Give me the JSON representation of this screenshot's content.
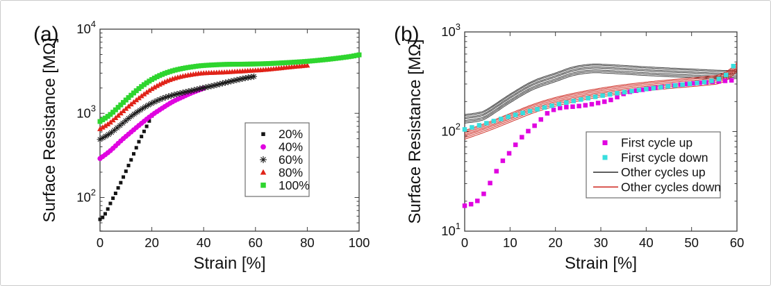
{
  "figure": {
    "description": "Two-panel log-scale figure of surface resistance versus strain",
    "background": "#ffffff"
  },
  "chart_data": [
    {
      "panel": "a",
      "panel_label": "(a)",
      "type": "scatter",
      "title": "",
      "xlabel": "Strain [%]",
      "ylabel": "Surface Resistance [MΩ]",
      "yscale": "log",
      "xlim": [
        0,
        100
      ],
      "xticks": [
        0,
        20,
        40,
        60,
        80,
        100
      ],
      "ylog_range_exp": [
        1.6,
        4
      ],
      "ytick_exponents": [
        2,
        3,
        4
      ],
      "grid": false,
      "legend_position": "middle-right",
      "series": [
        {
          "name": "20%",
          "draw": "scatter",
          "marker": "square",
          "color": "#141414",
          "marker_size": 5,
          "marker_step": 1,
          "points": [
            [
              0,
              55
            ],
            [
              1,
              58
            ],
            [
              2,
              64
            ],
            [
              3,
              73
            ],
            [
              4,
              85
            ],
            [
              5,
              98
            ],
            [
              6,
              112
            ],
            [
              7,
              130
            ],
            [
              8,
              150
            ],
            [
              9,
              175
            ],
            [
              10,
              205
            ],
            [
              11,
              240
            ],
            [
              12,
              280
            ],
            [
              13,
              330
            ],
            [
              14,
              390
            ],
            [
              15,
              460
            ],
            [
              16,
              530
            ],
            [
              17,
              610
            ],
            [
              18,
              700
            ],
            [
              19,
              810
            ],
            [
              20,
              930
            ]
          ]
        },
        {
          "name": "40%",
          "draw": "scatter",
          "marker": "circle",
          "color": "#E004E0",
          "marker_size": 6.5,
          "marker_step": 1,
          "points": [
            [
              0,
              290
            ],
            [
              4,
              360
            ],
            [
              8,
              470
            ],
            [
              12,
              600
            ],
            [
              16,
              760
            ],
            [
              20,
              950
            ],
            [
              24,
              1150
            ],
            [
              28,
              1370
            ],
            [
              32,
              1570
            ],
            [
              36,
              1780
            ],
            [
              40,
              1980
            ]
          ]
        },
        {
          "name": "60%",
          "draw": "scatter",
          "marker": "asterisk",
          "color": "#1a1a1a",
          "marker_size": 4.5,
          "marker_step": 1.1,
          "points": [
            [
              0,
              490
            ],
            [
              4,
              580
            ],
            [
              8,
              730
            ],
            [
              12,
              920
            ],
            [
              16,
              1120
            ],
            [
              20,
              1320
            ],
            [
              24,
              1500
            ],
            [
              28,
              1640
            ],
            [
              32,
              1760
            ],
            [
              36,
              1880
            ],
            [
              40,
              2010
            ],
            [
              44,
              2140
            ],
            [
              48,
              2300
            ],
            [
              52,
              2460
            ],
            [
              56,
              2620
            ],
            [
              60,
              2760
            ]
          ]
        },
        {
          "name": "80%",
          "draw": "scatter",
          "marker": "triangle",
          "color": "#E02318",
          "marker_size": 6,
          "marker_step": 1,
          "points": [
            [
              0,
              650
            ],
            [
              4,
              780
            ],
            [
              8,
              1000
            ],
            [
              12,
              1280
            ],
            [
              16,
              1600
            ],
            [
              20,
              1950
            ],
            [
              24,
              2280
            ],
            [
              28,
              2560
            ],
            [
              32,
              2760
            ],
            [
              36,
              2900
            ],
            [
              40,
              3000
            ],
            [
              48,
              3070
            ],
            [
              56,
              3180
            ],
            [
              64,
              3300
            ],
            [
              72,
              3500
            ],
            [
              80,
              3700
            ]
          ]
        },
        {
          "name": "100%",
          "draw": "scatter",
          "marker": "square",
          "color": "#2ED52E",
          "marker_size": 7,
          "marker_step": 1,
          "points": [
            [
              0,
              800
            ],
            [
              4,
              970
            ],
            [
              8,
              1260
            ],
            [
              12,
              1640
            ],
            [
              16,
              2080
            ],
            [
              20,
              2520
            ],
            [
              24,
              2900
            ],
            [
              28,
              3200
            ],
            [
              32,
              3420
            ],
            [
              36,
              3580
            ],
            [
              40,
              3700
            ],
            [
              48,
              3810
            ],
            [
              56,
              3840
            ],
            [
              64,
              3890
            ],
            [
              72,
              4000
            ],
            [
              80,
              4150
            ],
            [
              88,
              4380
            ],
            [
              96,
              4700
            ],
            [
              100,
              4950
            ]
          ]
        }
      ]
    },
    {
      "panel": "b",
      "panel_label": "(b)",
      "type": "scatter",
      "title": "",
      "xlabel": "Strain [%]",
      "ylabel": "Surface Resistance [MΩ]",
      "yscale": "log",
      "xlim": [
        0,
        60
      ],
      "xticks": [
        0,
        10,
        20,
        30,
        40,
        50,
        60
      ],
      "ylog_range_exp": [
        1,
        3
      ],
      "ytick_exponents": [
        1,
        2,
        3
      ],
      "grid": false,
      "legend_position": "lower-right",
      "series": [
        {
          "name": "First cycle up",
          "draw": "scatter",
          "marker": "square",
          "color": "#E004E0",
          "marker_size": 6.5,
          "marker_step": 1.4,
          "points": [
            [
              0,
              18
            ],
            [
              1,
              18.5
            ],
            [
              2,
              19
            ],
            [
              3,
              20.5
            ],
            [
              4,
              23
            ],
            [
              5,
              27
            ],
            [
              6,
              33
            ],
            [
              7,
              40
            ],
            [
              8,
              48
            ],
            [
              9,
              55
            ],
            [
              10,
              62
            ],
            [
              12,
              82
            ],
            [
              14,
              101
            ],
            [
              16,
              121
            ],
            [
              18,
              150
            ],
            [
              20,
              168
            ],
            [
              22,
              175
            ],
            [
              24,
              178
            ],
            [
              26,
              182
            ],
            [
              28,
              188
            ],
            [
              30,
              196
            ],
            [
              32,
              206
            ],
            [
              34,
              226
            ],
            [
              36,
              248
            ],
            [
              40,
              266
            ],
            [
              44,
              283
            ],
            [
              48,
              297
            ],
            [
              52,
              309
            ],
            [
              56,
              319
            ],
            [
              60,
              330
            ]
          ]
        },
        {
          "name": "First cycle down",
          "draw": "scatter",
          "marker": "square",
          "color": "#38DEDE",
          "marker_size": 6.5,
          "marker_step": 1.6,
          "points": [
            [
              0,
              105
            ],
            [
              5,
              122
            ],
            [
              10,
              142
            ],
            [
              15,
              163
            ],
            [
              20,
              185
            ],
            [
              25,
              207
            ],
            [
              30,
              228
            ],
            [
              35,
              248
            ],
            [
              40,
              267
            ],
            [
              45,
              285
            ],
            [
              50,
              303
            ],
            [
              54,
              320
            ],
            [
              57,
              352
            ],
            [
              59,
              440
            ],
            [
              60,
              525
            ]
          ]
        },
        {
          "name": "Other cycles up",
          "draw": "line-bundle",
          "color": "#2b2b2b",
          "line_width": 1,
          "offsets": [
            0.9,
            0.93,
            0.96,
            1.0,
            1.03,
            1.07,
            1.1
          ],
          "points": [
            [
              0,
              135
            ],
            [
              3,
              141
            ],
            [
              5,
              153
            ],
            [
              10,
              216
            ],
            [
              15,
              292
            ],
            [
              20,
              352
            ],
            [
              24,
              406
            ],
            [
              28,
              432
            ],
            [
              31,
              429
            ],
            [
              35,
              419
            ],
            [
              40,
              406
            ],
            [
              45,
              395
            ],
            [
              50,
              386
            ],
            [
              55,
              376
            ],
            [
              58,
              373
            ],
            [
              60,
              379
            ]
          ]
        },
        {
          "name": "Other cycles down",
          "draw": "line-bundle",
          "color": "#CC2118",
          "line_width": 1,
          "offsets": [
            0.9,
            0.935,
            0.97,
            1.0,
            1.035,
            1.07,
            1.1
          ],
          "points": [
            [
              0,
              93
            ],
            [
              5,
              112
            ],
            [
              10,
              138
            ],
            [
              15,
              170
            ],
            [
              20,
              200
            ],
            [
              25,
              225
            ],
            [
              30,
              248
            ],
            [
              35,
              268
            ],
            [
              40,
              285
            ],
            [
              45,
              300
            ],
            [
              50,
              314
            ],
            [
              54,
              327
            ],
            [
              56,
              337
            ],
            [
              58,
              372
            ],
            [
              60,
              445
            ]
          ]
        }
      ]
    }
  ]
}
